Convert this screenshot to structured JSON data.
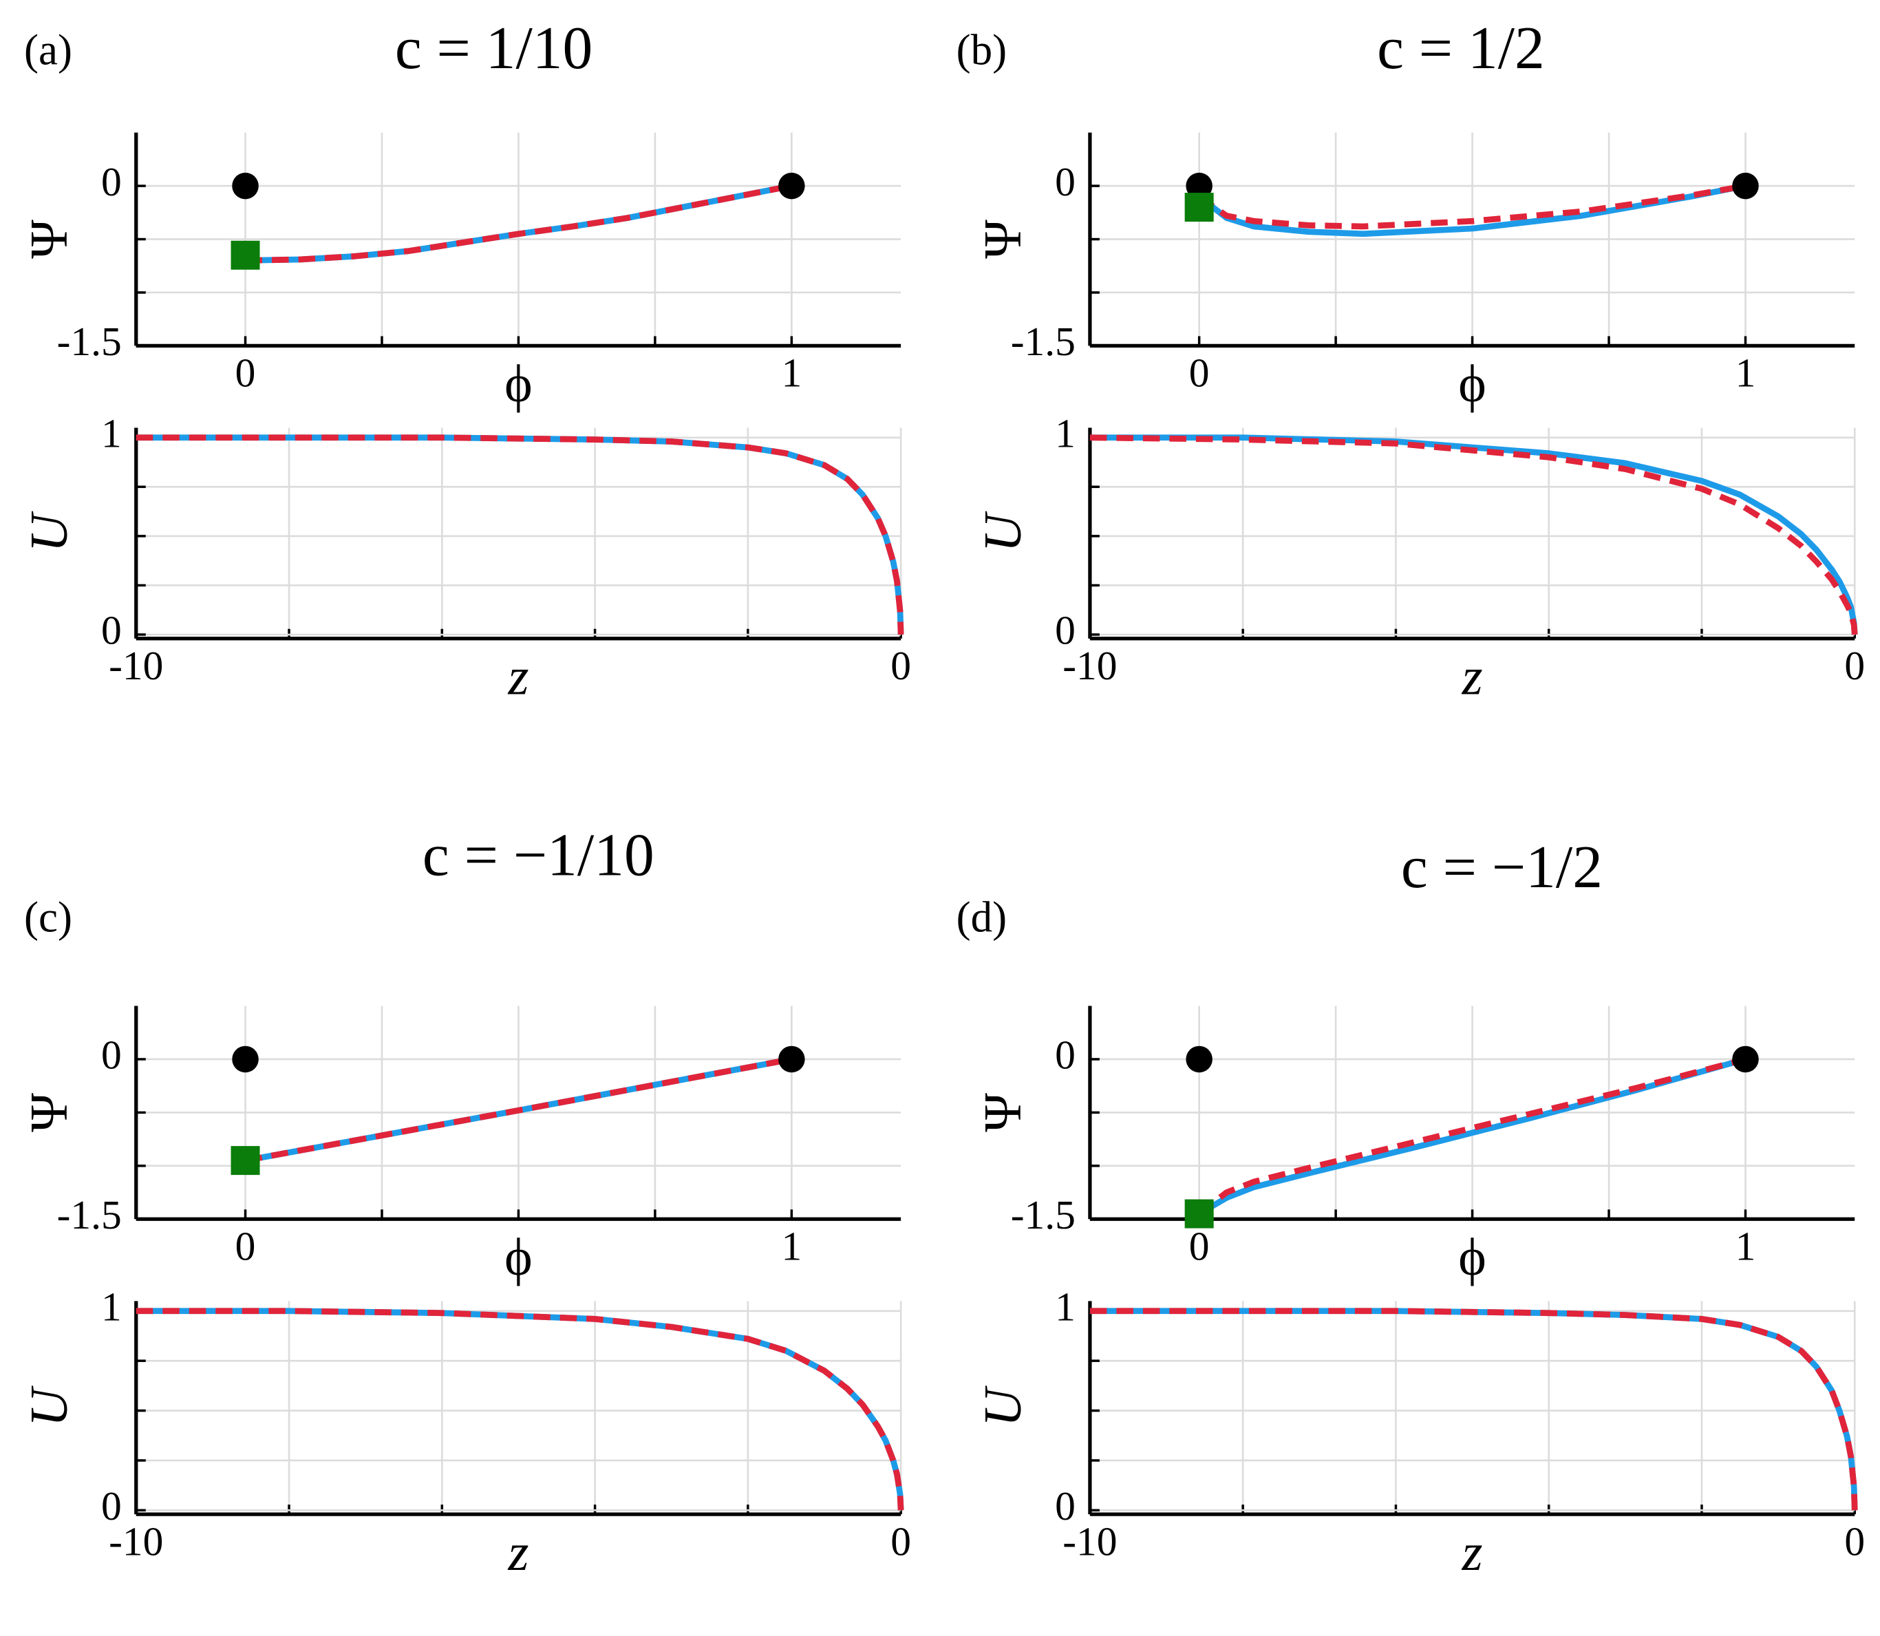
{
  "chart_data": [
    {
      "type": "line",
      "panel_label": "(a)",
      "title": "c = 1/10",
      "xlabel": "ϕ",
      "ylabel": "Ψ",
      "xlim": [
        -0.2,
        1.2
      ],
      "ylim": [
        -1.5,
        0.5
      ],
      "xticks": [
        0,
        1
      ],
      "yticks": [
        -1.5,
        0
      ],
      "minor_xticks": [
        0.25,
        0.5,
        0.75
      ],
      "minor_yticks": [
        -1,
        -0.5
      ],
      "grid": true,
      "series": [
        {
          "color": "#1e9be8",
          "style": "solid",
          "x": [
            0,
            0.1,
            0.2,
            0.3,
            0.4,
            0.5,
            0.6,
            0.7,
            0.8,
            0.9,
            1
          ],
          "values": [
            -0.7,
            -0.69,
            -0.66,
            -0.61,
            -0.53,
            -0.45,
            -0.38,
            -0.3,
            -0.2,
            -0.1,
            0
          ]
        },
        {
          "color": "#e0243a",
          "style": "dashed",
          "x": [
            0,
            0.1,
            0.2,
            0.3,
            0.4,
            0.5,
            0.6,
            0.7,
            0.8,
            0.9,
            1
          ],
          "values": [
            -0.7,
            -0.69,
            -0.66,
            -0.61,
            -0.53,
            -0.45,
            -0.38,
            -0.3,
            -0.2,
            -0.1,
            0
          ]
        },
        {
          "color": "#000000",
          "marker": "circle",
          "x": [
            0,
            1
          ],
          "values": [
            0,
            0
          ]
        },
        {
          "color": "#0a7d0a",
          "marker": "square",
          "x": [
            0
          ],
          "values": [
            -0.65
          ]
        }
      ]
    },
    {
      "type": "line",
      "xlabel": "z",
      "ylabel": "U",
      "xlim": [
        -10,
        0
      ],
      "ylim": [
        -0.02,
        1.05
      ],
      "xticks": [
        -10,
        0
      ],
      "yticks": [
        0,
        1
      ],
      "minor_xticks": [
        -8,
        -6,
        -4,
        -2
      ],
      "minor_yticks": [
        0.25,
        0.5,
        0.75
      ],
      "grid": true,
      "series": [
        {
          "color": "#1e9be8",
          "style": "solid",
          "x": [
            -10,
            -8,
            -6,
            -4,
            -3,
            -2,
            -1.5,
            -1,
            -0.7,
            -0.5,
            -0.3,
            -0.2,
            -0.1,
            -0.05,
            -0.01,
            0
          ],
          "values": [
            1,
            1,
            1,
            0.99,
            0.98,
            0.95,
            0.92,
            0.86,
            0.79,
            0.71,
            0.59,
            0.5,
            0.37,
            0.27,
            0.12,
            0
          ]
        },
        {
          "color": "#e0243a",
          "style": "dashed",
          "x": [
            -10,
            -8,
            -6,
            -4,
            -3,
            -2,
            -1.5,
            -1,
            -0.7,
            -0.5,
            -0.3,
            -0.2,
            -0.1,
            -0.05,
            -0.01,
            0
          ],
          "values": [
            1,
            1,
            1,
            0.99,
            0.98,
            0.95,
            0.92,
            0.86,
            0.79,
            0.71,
            0.59,
            0.5,
            0.37,
            0.27,
            0.12,
            0
          ]
        }
      ]
    },
    {
      "type": "line",
      "panel_label": "(b)",
      "title": "c = 1/2",
      "xlabel": "ϕ",
      "ylabel": "Ψ",
      "xlim": [
        -0.2,
        1.2
      ],
      "ylim": [
        -1.5,
        0.5
      ],
      "xticks": [
        0,
        1
      ],
      "yticks": [
        -1.5,
        0
      ],
      "minor_xticks": [
        0.25,
        0.5,
        0.75
      ],
      "minor_yticks": [
        -1,
        -0.5
      ],
      "grid": true,
      "series": [
        {
          "color": "#1e9be8",
          "style": "solid",
          "x": [
            0,
            0.05,
            0.1,
            0.2,
            0.3,
            0.5,
            0.7,
            0.9,
            1
          ],
          "values": [
            -0.1,
            -0.3,
            -0.38,
            -0.43,
            -0.45,
            -0.4,
            -0.28,
            -0.1,
            0
          ]
        },
        {
          "color": "#e0243a",
          "style": "dashed",
          "x": [
            0,
            0.05,
            0.1,
            0.2,
            0.3,
            0.5,
            0.7,
            0.9,
            1
          ],
          "values": [
            -0.1,
            -0.28,
            -0.33,
            -0.37,
            -0.38,
            -0.33,
            -0.24,
            -0.09,
            0
          ]
        },
        {
          "color": "#000000",
          "marker": "circle",
          "x": [
            0,
            1
          ],
          "values": [
            0,
            0
          ]
        },
        {
          "color": "#0a7d0a",
          "marker": "square",
          "x": [
            0
          ],
          "values": [
            -0.2
          ]
        }
      ]
    },
    {
      "type": "line",
      "xlabel": "z",
      "ylabel": "U",
      "xlim": [
        -10,
        0
      ],
      "ylim": [
        -0.02,
        1.05
      ],
      "xticks": [
        -10,
        0
      ],
      "yticks": [
        0,
        1
      ],
      "minor_xticks": [
        -8,
        -6,
        -4,
        -2
      ],
      "minor_yticks": [
        0.25,
        0.5,
        0.75
      ],
      "grid": true,
      "series": [
        {
          "color": "#1e9be8",
          "style": "solid",
          "x": [
            -10,
            -8,
            -6,
            -4,
            -3,
            -2,
            -1.5,
            -1,
            -0.7,
            -0.5,
            -0.3,
            -0.2,
            -0.1,
            -0.05,
            -0.01,
            0
          ],
          "values": [
            1,
            1,
            0.98,
            0.92,
            0.87,
            0.78,
            0.71,
            0.6,
            0.51,
            0.43,
            0.33,
            0.27,
            0.19,
            0.14,
            0.06,
            0
          ]
        },
        {
          "color": "#e0243a",
          "style": "dashed",
          "x": [
            -10,
            -8,
            -6,
            -4,
            -3,
            -2,
            -1.5,
            -1,
            -0.7,
            -0.5,
            -0.3,
            -0.2,
            -0.1,
            -0.05,
            -0.01,
            0
          ],
          "values": [
            1,
            0.99,
            0.97,
            0.9,
            0.84,
            0.74,
            0.66,
            0.54,
            0.45,
            0.37,
            0.28,
            0.22,
            0.15,
            0.11,
            0.05,
            0
          ]
        }
      ]
    },
    {
      "type": "line",
      "panel_label": "(c)",
      "title": "c = −1/10",
      "xlabel": "ϕ",
      "ylabel": "Ψ",
      "xlim": [
        -0.2,
        1.2
      ],
      "ylim": [
        -1.5,
        0.5
      ],
      "xticks": [
        0,
        1
      ],
      "yticks": [
        -1.5,
        0
      ],
      "minor_xticks": [
        0.25,
        0.5,
        0.75
      ],
      "minor_yticks": [
        -1,
        -0.5
      ],
      "grid": true,
      "series": [
        {
          "color": "#1e9be8",
          "style": "solid",
          "x": [
            0,
            0.5,
            1
          ],
          "values": [
            -0.95,
            -0.48,
            0
          ]
        },
        {
          "color": "#e0243a",
          "style": "dashed",
          "x": [
            0,
            0.5,
            1
          ],
          "values": [
            -0.95,
            -0.48,
            0
          ]
        },
        {
          "color": "#000000",
          "marker": "circle",
          "x": [
            0,
            1
          ],
          "values": [
            0,
            0
          ]
        },
        {
          "color": "#0a7d0a",
          "marker": "square",
          "x": [
            0
          ],
          "values": [
            -0.95
          ]
        }
      ]
    },
    {
      "type": "line",
      "xlabel": "z",
      "ylabel": "U",
      "xlim": [
        -10,
        0
      ],
      "ylim": [
        -0.02,
        1.05
      ],
      "xticks": [
        -10,
        0
      ],
      "yticks": [
        0,
        1
      ],
      "minor_xticks": [
        -8,
        -6,
        -4,
        -2
      ],
      "minor_yticks": [
        0.25,
        0.5,
        0.75
      ],
      "grid": true,
      "series": [
        {
          "color": "#1e9be8",
          "style": "solid",
          "x": [
            -10,
            -8,
            -6,
            -4,
            -3,
            -2,
            -1.5,
            -1,
            -0.7,
            -0.5,
            -0.3,
            -0.2,
            -0.1,
            -0.05,
            -0.01,
            0
          ],
          "values": [
            1,
            1,
            0.99,
            0.96,
            0.92,
            0.86,
            0.8,
            0.7,
            0.61,
            0.53,
            0.42,
            0.35,
            0.25,
            0.18,
            0.08,
            0
          ]
        },
        {
          "color": "#e0243a",
          "style": "dashed",
          "x": [
            -10,
            -8,
            -6,
            -4,
            -3,
            -2,
            -1.5,
            -1,
            -0.7,
            -0.5,
            -0.3,
            -0.2,
            -0.1,
            -0.05,
            -0.01,
            0
          ],
          "values": [
            1,
            1,
            0.99,
            0.96,
            0.92,
            0.86,
            0.8,
            0.7,
            0.61,
            0.53,
            0.42,
            0.35,
            0.25,
            0.18,
            0.08,
            0
          ]
        }
      ]
    },
    {
      "type": "line",
      "panel_label": "(d)",
      "title": "c = −1/2",
      "xlabel": "ϕ",
      "ylabel": "Ψ",
      "xlim": [
        -0.2,
        1.2
      ],
      "ylim": [
        -1.5,
        0.5
      ],
      "xticks": [
        0,
        1
      ],
      "yticks": [
        -1.5,
        0
      ],
      "minor_xticks": [
        0.25,
        0.5,
        0.75
      ],
      "minor_yticks": [
        -1,
        -0.5
      ],
      "grid": true,
      "series": [
        {
          "color": "#1e9be8",
          "style": "solid",
          "x": [
            0,
            0.05,
            0.1,
            0.2,
            0.4,
            0.6,
            0.8,
            1
          ],
          "values": [
            -1.45,
            -1.3,
            -1.2,
            -1.07,
            -0.82,
            -0.56,
            -0.29,
            0
          ]
        },
        {
          "color": "#e0243a",
          "style": "dashed",
          "x": [
            0,
            0.05,
            0.1,
            0.2,
            0.4,
            0.6,
            0.8,
            1
          ],
          "values": [
            -1.45,
            -1.25,
            -1.15,
            -1.02,
            -0.77,
            -0.52,
            -0.27,
            0
          ]
        },
        {
          "color": "#000000",
          "marker": "circle",
          "x": [
            0,
            1
          ],
          "values": [
            0,
            0
          ]
        },
        {
          "color": "#0a7d0a",
          "marker": "square",
          "x": [
            0
          ],
          "values": [
            -1.45
          ]
        }
      ]
    },
    {
      "type": "line",
      "xlabel": "z",
      "ylabel": "U",
      "xlim": [
        -10,
        0
      ],
      "ylim": [
        -0.02,
        1.05
      ],
      "xticks": [
        -10,
        0
      ],
      "yticks": [
        0,
        1
      ],
      "minor_xticks": [
        -8,
        -6,
        -4,
        -2
      ],
      "minor_yticks": [
        0.25,
        0.5,
        0.75
      ],
      "grid": true,
      "series": [
        {
          "color": "#1e9be8",
          "style": "solid",
          "x": [
            -10,
            -8,
            -6,
            -4,
            -3,
            -2,
            -1.5,
            -1,
            -0.7,
            -0.5,
            -0.3,
            -0.2,
            -0.1,
            -0.05,
            -0.01,
            0
          ],
          "values": [
            1,
            1,
            1,
            0.99,
            0.98,
            0.96,
            0.93,
            0.87,
            0.8,
            0.72,
            0.6,
            0.5,
            0.37,
            0.27,
            0.12,
            0
          ]
        },
        {
          "color": "#e0243a",
          "style": "dashed",
          "x": [
            -10,
            -8,
            -6,
            -4,
            -3,
            -2,
            -1.5,
            -1,
            -0.7,
            -0.5,
            -0.3,
            -0.2,
            -0.1,
            -0.05,
            -0.01,
            0
          ],
          "values": [
            1,
            1,
            1,
            0.99,
            0.98,
            0.96,
            0.93,
            0.87,
            0.8,
            0.72,
            0.6,
            0.5,
            0.37,
            0.27,
            0.12,
            0
          ]
        }
      ]
    }
  ]
}
